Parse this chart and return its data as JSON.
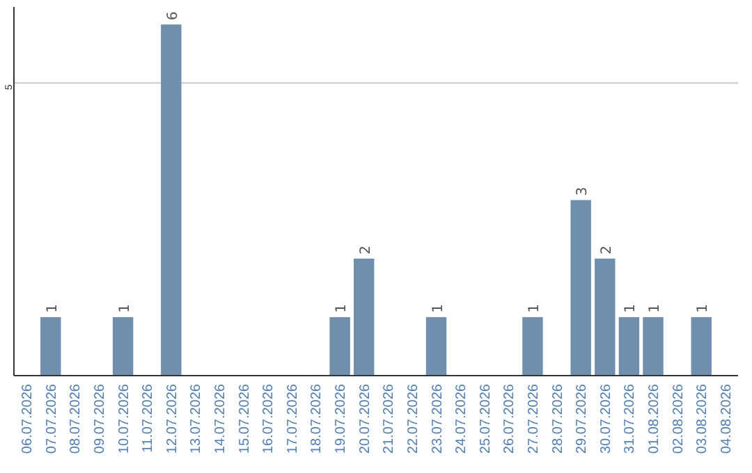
{
  "chart_data": {
    "type": "bar",
    "categories": [
      "06.07.2026",
      "07.07.2026",
      "08.07.2026",
      "09.07.2026",
      "10.07.2026",
      "11.07.2026",
      "12.07.2026",
      "13.07.2026",
      "14.07.2026",
      "15.07.2026",
      "16.07.2026",
      "17.07.2026",
      "18.07.2026",
      "19.07.2026",
      "20.07.2026",
      "21.07.2026",
      "22.07.2026",
      "23.07.2026",
      "24.07.2026",
      "25.07.2026",
      "26.07.2026",
      "27.07.2026",
      "28.07.2026",
      "29.07.2026",
      "30.07.2026",
      "31.07.2026",
      "01.08.2026",
      "02.08.2026",
      "03.08.2026",
      "04.08.2026"
    ],
    "values": [
      0,
      1,
      0,
      0,
      1,
      0,
      6,
      0,
      0,
      0,
      0,
      0,
      0,
      1,
      2,
      0,
      0,
      1,
      0,
      0,
      0,
      1,
      0,
      3,
      2,
      1,
      1,
      0,
      1,
      0
    ],
    "value_labels": [
      null,
      "1",
      null,
      null,
      "1",
      null,
      "6",
      null,
      null,
      null,
      null,
      null,
      null,
      "1",
      "2",
      null,
      null,
      "1",
      null,
      null,
      null,
      "1",
      null,
      "3",
      "2",
      "1",
      "1",
      null,
      "1",
      null
    ],
    "color": "#6e8fae",
    "ylim": [
      0,
      6.3
    ],
    "yticks": [
      5
    ],
    "grid": "y"
  }
}
